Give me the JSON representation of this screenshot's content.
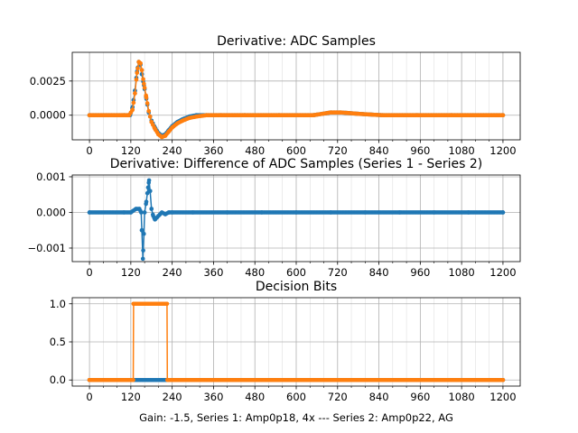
{
  "chart_data": [
    {
      "type": "line",
      "title": "Derivative: ADC Samples",
      "xlabel": "",
      "ylabel": "",
      "xlim": [
        -50,
        1250
      ],
      "ylim": [
        -0.0018,
        0.0046
      ],
      "xticks": [
        0,
        120,
        240,
        360,
        480,
        600,
        720,
        840,
        960,
        1080,
        1200
      ],
      "xtick_labels": [
        "0",
        "120",
        "240",
        "360",
        "480",
        "600",
        "720",
        "840",
        "960",
        "1080",
        "1200"
      ],
      "yticks": [
        0.0,
        0.0025
      ],
      "ytick_labels": [
        "0.0000",
        "0.0025"
      ],
      "grid": true,
      "series": [
        {
          "name": "Series 1",
          "color": "#1f77b4",
          "x": [
            0,
            100,
            118,
            125,
            132,
            138,
            143,
            148,
            152,
            158,
            165,
            172,
            180,
            190,
            200,
            210,
            220,
            230,
            240,
            255,
            270,
            290,
            310,
            340,
            380,
            450,
            550,
            650,
            700,
            730,
            780,
            850,
            950,
            1050,
            1200
          ],
          "y": [
            0,
            0,
            0,
            0.0006,
            0.0018,
            0.0032,
            0.0039,
            0.0037,
            0.003,
            0.0022,
            0.0012,
            0.0002,
            -0.0004,
            -0.0009,
            -0.0013,
            -0.0015,
            -0.0014,
            -0.0011,
            -0.0008,
            -0.0005,
            -0.0003,
            -0.0001,
            0,
            0,
            0,
            0,
            0,
            0,
            0.0002,
            0.0002,
            0.0001,
            0,
            0,
            0,
            0
          ]
        },
        {
          "name": "Series 2",
          "color": "#ff7f0e",
          "x": [
            0,
            100,
            115,
            125,
            132,
            138,
            143,
            148,
            152,
            158,
            165,
            172,
            180,
            190,
            200,
            210,
            220,
            230,
            240,
            255,
            270,
            290,
            310,
            340,
            380,
            450,
            550,
            650,
            700,
            730,
            780,
            850,
            950,
            1050,
            1200
          ],
          "y": [
            0,
            0,
            0,
            0.0004,
            0.0016,
            0.0031,
            0.0039,
            0.0038,
            0.0033,
            0.0023,
            0.0013,
            0.0003,
            -0.0005,
            -0.001,
            -0.0014,
            -0.0016,
            -0.0015,
            -0.0012,
            -0.0009,
            -0.0006,
            -0.0004,
            -0.0002,
            -0.0001,
            0,
            0,
            0,
            0,
            0,
            0.0002,
            0.0002,
            0.0001,
            0,
            0,
            0,
            0
          ]
        }
      ]
    },
    {
      "type": "line",
      "title": "Derivative: Difference of ADC Samples (Series 1 - Series 2)",
      "xlabel": "",
      "ylabel": "",
      "xlim": [
        -50,
        1250
      ],
      "ylim": [
        -0.00138,
        0.00105
      ],
      "xticks": [
        0,
        120,
        240,
        360,
        480,
        600,
        720,
        840,
        960,
        1080,
        1200
      ],
      "xtick_labels": [
        "0",
        "120",
        "240",
        "360",
        "480",
        "600",
        "720",
        "840",
        "960",
        "1080",
        "1200"
      ],
      "yticks": [
        -0.001,
        0.0,
        0.001
      ],
      "ytick_labels": [
        "−0.001",
        "0.000",
        "0.001"
      ],
      "grid": true,
      "series": [
        {
          "name": "Series 1 - Series 2",
          "color": "#1f77b4",
          "x": [
            0,
            100,
            120,
            135,
            145,
            150,
            152,
            155,
            158,
            160,
            165,
            170,
            173,
            176,
            180,
            185,
            190,
            200,
            210,
            220,
            230,
            240,
            300,
            400,
            500,
            600,
            700,
            800,
            900,
            1000,
            1100,
            1200
          ],
          "y": [
            0,
            0,
            0,
            0.0001,
            0.0001,
            0,
            -0.0005,
            -0.0013,
            -0.0006,
            0,
            0.0003,
            0.0007,
            0.0009,
            0.0006,
            0.0001,
            -0.0001,
            -0.0002,
            -0.0001,
            0,
            -5e-05,
            0,
            0,
            0,
            0,
            0,
            0,
            0,
            0,
            0,
            0,
            0,
            0
          ]
        }
      ]
    },
    {
      "type": "line",
      "title": "Decision Bits",
      "xlabel": "Gain: -1.5, Series 1: Amp0p18, 4x --- Series 2: Amp0p22, AG",
      "ylabel": "",
      "xlim": [
        -50,
        1250
      ],
      "ylim": [
        -0.08,
        1.08
      ],
      "xticks": [
        0,
        120,
        240,
        360,
        480,
        600,
        720,
        840,
        960,
        1080,
        1200
      ],
      "xtick_labels": [
        "0",
        "120",
        "240",
        "360",
        "480",
        "600",
        "720",
        "840",
        "960",
        "1080",
        "1200"
      ],
      "yticks": [
        0.0,
        0.5,
        1.0
      ],
      "ytick_labels": [
        "0.0",
        "0.5",
        "1.0"
      ],
      "grid": true,
      "series": [
        {
          "name": "Series 1",
          "color": "#1f77b4",
          "x": [
            0,
            1200
          ],
          "y": [
            0,
            0
          ]
        },
        {
          "name": "Series 2",
          "color": "#ff7f0e",
          "x": [
            0,
            127,
            128,
            225,
            226,
            1200
          ],
          "y": [
            0,
            0,
            1,
            1,
            0,
            0
          ]
        }
      ]
    }
  ]
}
